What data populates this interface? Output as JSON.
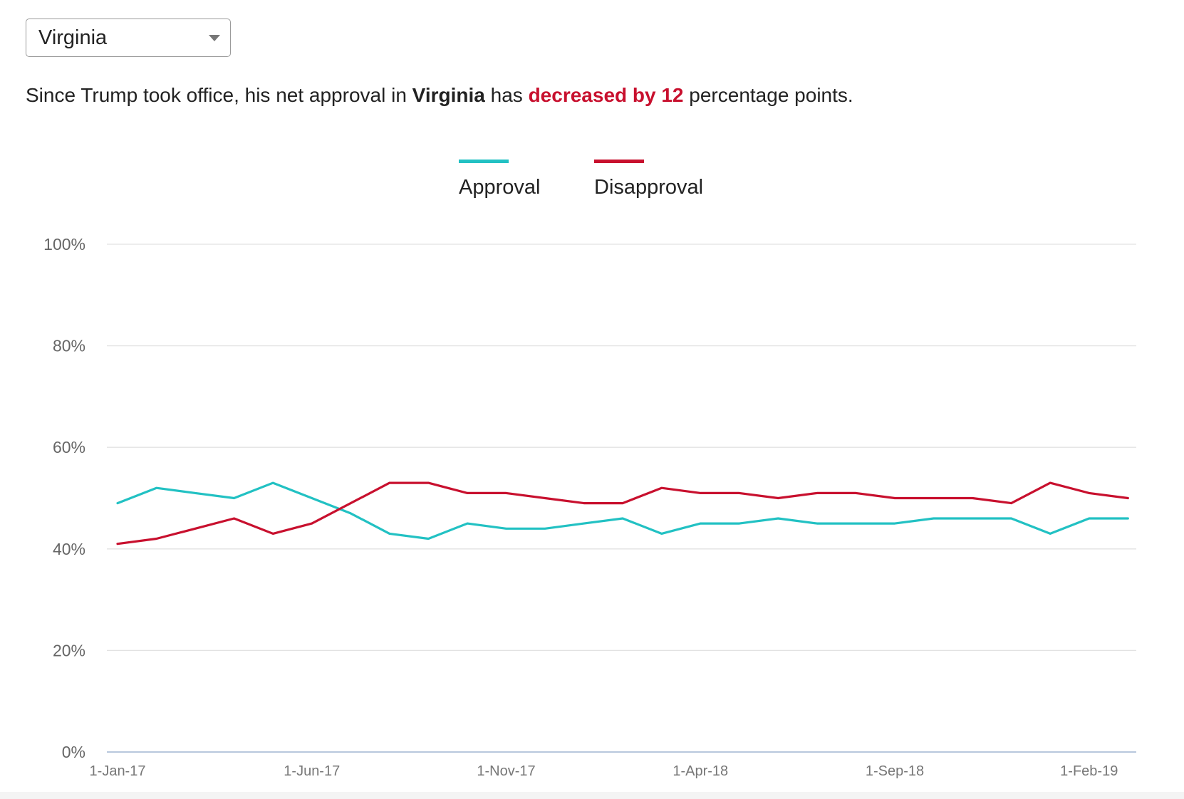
{
  "selector": {
    "value": "Virginia",
    "icon": "caret-down-icon"
  },
  "summary": {
    "prefix": "Since Trump took office, his net approval in",
    "state": "Virginia",
    "middle": "has",
    "change": "decreased by 12",
    "suffix": "percentage points."
  },
  "colors": {
    "approval": "#22c1c3",
    "disapproval": "#c8102e",
    "grid": "#e2e2e2",
    "axis": "#b8c7dd"
  },
  "chart_data": {
    "type": "line",
    "title": "",
    "xlabel": "",
    "ylabel": "",
    "ylim": [
      0,
      100
    ],
    "y_ticks": [
      "0%",
      "20%",
      "40%",
      "60%",
      "80%",
      "100%"
    ],
    "x_tick_labels": [
      "1-Jan-17",
      "1-Jun-17",
      "1-Nov-17",
      "1-Apr-18",
      "1-Sep-18",
      "1-Feb-19"
    ],
    "x": [
      "2017-01",
      "2017-02",
      "2017-03",
      "2017-04",
      "2017-05",
      "2017-06",
      "2017-07",
      "2017-08",
      "2017-09",
      "2017-10",
      "2017-11",
      "2017-12",
      "2018-01",
      "2018-02",
      "2018-03",
      "2018-04",
      "2018-05",
      "2018-06",
      "2018-07",
      "2018-08",
      "2018-09",
      "2018-10",
      "2018-11",
      "2018-12",
      "2019-01",
      "2019-02",
      "2019-03"
    ],
    "grid": true,
    "legend": "top-center",
    "series": [
      {
        "name": "Approval",
        "color": "#22c1c3",
        "values": [
          49,
          52,
          51,
          50,
          53,
          50,
          47,
          43,
          42,
          45,
          44,
          44,
          45,
          46,
          43,
          45,
          45,
          46,
          45,
          45,
          45,
          46,
          46,
          46,
          43,
          46,
          46
        ]
      },
      {
        "name": "Disapproval",
        "color": "#c8102e",
        "values": [
          41,
          42,
          44,
          46,
          43,
          45,
          49,
          53,
          53,
          51,
          51,
          50,
          49,
          49,
          52,
          51,
          51,
          50,
          51,
          51,
          50,
          50,
          50,
          49,
          53,
          51,
          50
        ]
      }
    ]
  }
}
